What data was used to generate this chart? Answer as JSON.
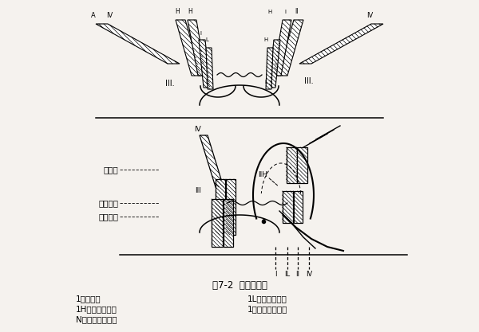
{
  "title": "图7-2  隔越分类图",
  "bg_color": "#f5f2ee",
  "caption_lines": [
    [
      "1．皮下窦",
      95,
      "1L．低位肌间瘘",
      310
    ],
    [
      "1H．高位肌间瘘",
      95,
      "1．坐骨直肠窝瘘",
      310
    ],
    [
      "N．骨盆直肠窝瘘",
      95,
      "",
      310
    ]
  ],
  "left_labels": [
    [
      "提肛肌",
      195,
      210
    ],
    [
      "内括约肌",
      195,
      248
    ],
    [
      "外括约肌",
      195,
      268
    ]
  ]
}
